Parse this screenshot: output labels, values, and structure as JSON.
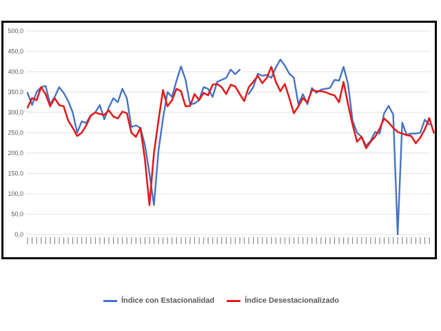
{
  "chart_data": {
    "type": "line",
    "title": "",
    "xlabel": "",
    "ylabel": "",
    "ylim": [
      0,
      500
    ],
    "yticks": [
      "0,0",
      "50,0",
      "100,0",
      "150,0",
      "200,0",
      "250,0",
      "300,0",
      "350,0",
      "400,0",
      "450,0",
      "500,0"
    ],
    "grid": true,
    "legend": "bottom",
    "series": [
      {
        "name": "Índice con Estacionalidad",
        "color": "#4472c4",
        "values": [
          348,
          318,
          350,
          362,
          365,
          320,
          338,
          362,
          348,
          328,
          300,
          250,
          278,
          274,
          293,
          300,
          318,
          283,
          312,
          335,
          325,
          358,
          335,
          264,
          268,
          262,
          220,
          150,
          72,
          205,
          285,
          350,
          338,
          378,
          413,
          380,
          320,
          322,
          330,
          362,
          358,
          338,
          375,
          380,
          385,
          405,
          394,
          405,
          null,
          345,
          362,
          395,
          390,
          392,
          385,
          410,
          430,
          415,
          395,
          385,
          320,
          345,
          320,
          360,
          348,
          356,
          358,
          360,
          380,
          378,
          412,
          370,
          280,
          250,
          240,
          218,
          230,
          252,
          248,
          298,
          316,
          295,
          0,
          275,
          245,
          248,
          248,
          250,
          282,
          270
        ],
        "segment_breaks": [
          48
        ]
      },
      {
        "name": "Índice Desestacionalizado",
        "color": "#e31a1c",
        "values": [
          312,
          335,
          330,
          362,
          345,
          315,
          335,
          318,
          315,
          280,
          262,
          242,
          250,
          268,
          292,
          300,
          296,
          294,
          305,
          290,
          285,
          302,
          298,
          250,
          240,
          262,
          185,
          72,
          200,
          280,
          355,
          315,
          330,
          358,
          352,
          315,
          316,
          345,
          330,
          348,
          342,
          368,
          370,
          362,
          345,
          368,
          364,
          345,
          328,
          362,
          375,
          390,
          372,
          385,
          412,
          375,
          352,
          370,
          335,
          298,
          315,
          335,
          325,
          355,
          352,
          352,
          350,
          345,
          342,
          325,
          375,
          320,
          270,
          228,
          240,
          212,
          228,
          240,
          260,
          285,
          275,
          262,
          252,
          248,
          244,
          242,
          224,
          238,
          258,
          286,
          250
        ]
      }
    ],
    "x_tick_count": 90
  },
  "legend": {
    "series1": "Índice con Estacionalidad",
    "series2": "Índice Desestacionalizado"
  }
}
